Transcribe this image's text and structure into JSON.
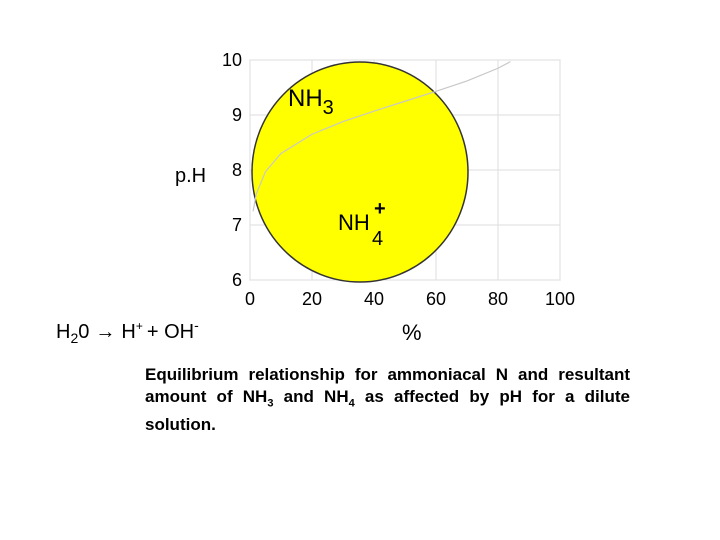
{
  "chart_data": {
    "type": "line",
    "x_label": "%",
    "y_label": "p.H",
    "x": [
      1,
      2,
      5,
      10,
      20,
      30,
      40,
      50,
      60,
      70,
      80,
      84
    ],
    "series": [
      {
        "color": "#c8c8c8",
        "values": [
          7.25,
          7.56,
          7.97,
          8.3,
          8.65,
          8.88,
          9.07,
          9.25,
          9.43,
          9.62,
          9.85,
          9.97
        ]
      }
    ],
    "xlim": [
      0,
      100
    ],
    "xticks": [
      0,
      20,
      40,
      60,
      80,
      100
    ],
    "ylim": [
      6,
      10
    ],
    "yticks": [
      6,
      7,
      8,
      9,
      10
    ],
    "grid": true,
    "annotations": [
      {
        "text": "NH",
        "sub": "3"
      },
      {
        "text": "NH",
        "sub": "4",
        "sup": "+"
      }
    ]
  },
  "equation": {
    "h": "H",
    "h_sub": "2",
    "zero": "0",
    "arrow": "→",
    "h2": "H",
    "h2_sup": "+",
    "plus_oh": "+ OH",
    "oh_sup": "-"
  },
  "caption": {
    "a": "Equilibrium relationship for ammoniacal N and resultant amount of NH",
    "sub1": "3",
    "b": " and NH",
    "sub2": "4",
    "c": " as affected by pH for a dilute solution."
  }
}
